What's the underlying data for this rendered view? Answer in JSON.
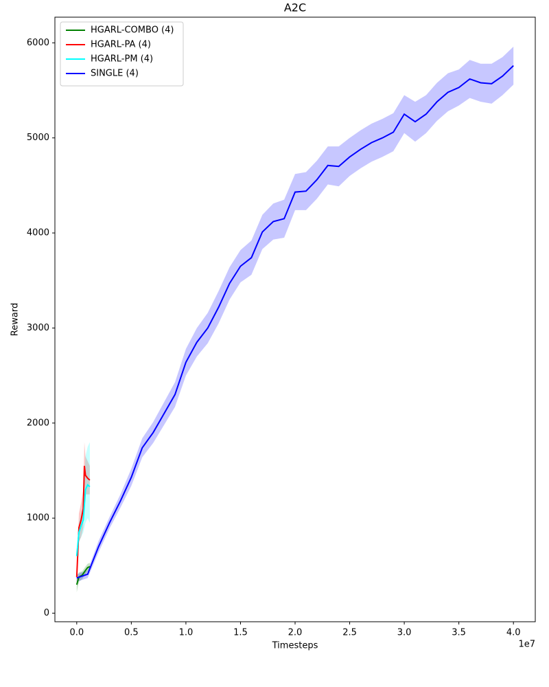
{
  "chart_data": {
    "type": "line",
    "title": "A2C",
    "x_label": "Timesteps",
    "y_label": "Reward",
    "x_offset_label": "1e7",
    "xlim": [
      -0.2,
      4.2
    ],
    "ylim": [
      -90,
      6270
    ],
    "xticks": [
      {
        "value": 0,
        "label": "0.0"
      },
      0.5,
      {
        "value": 1,
        "label": "1.0"
      },
      1.5,
      {
        "value": 2,
        "label": "2.0"
      },
      2.5,
      {
        "value": 3,
        "label": "3.0"
      },
      3.5,
      {
        "value": 4,
        "label": "4.0"
      }
    ],
    "yticks": [
      0,
      1000,
      2000,
      3000,
      4000,
      5000,
      6000
    ],
    "grid": false,
    "legend": "upper left",
    "series": [
      {
        "name": "HGARL-COMBO (4)",
        "color": "#008000",
        "x": [
          0,
          0.02,
          0.05,
          0.08,
          0.1,
          0.12
        ],
        "values": [
          300,
          380,
          400,
          450,
          480,
          490
        ],
        "lower": [
          220,
          330,
          360,
          410,
          440,
          450
        ],
        "upper": [
          380,
          430,
          440,
          490,
          520,
          530
        ]
      },
      {
        "name": "HGARL-PA (4)",
        "color": "#ff0000",
        "x": [
          0,
          0.02,
          0.04,
          0.06,
          0.07,
          0.08,
          0.1,
          0.12
        ],
        "values": [
          380,
          900,
          980,
          1100,
          1550,
          1450,
          1420,
          1400
        ],
        "lower": [
          300,
          750,
          800,
          900,
          1350,
          1250,
          1250,
          1250
        ],
        "upper": [
          460,
          1050,
          1160,
          1300,
          1800,
          1650,
          1600,
          1550
        ]
      },
      {
        "name": "HGARL-PM (4)",
        "color": "#00ffff",
        "x": [
          0,
          0.02,
          0.04,
          0.06,
          0.08,
          0.1,
          0.12
        ],
        "values": [
          600,
          850,
          920,
          980,
          1300,
          1350,
          1330
        ],
        "lower": [
          550,
          750,
          800,
          850,
          950,
          1000,
          950
        ],
        "upper": [
          650,
          950,
          1050,
          1150,
          1650,
          1750,
          1800
        ]
      },
      {
        "name": "SINGLE (4)",
        "color": "#0000ff",
        "x": [
          0,
          0.1,
          0.2,
          0.3,
          0.4,
          0.5,
          0.6,
          0.7,
          0.8,
          0.9,
          1.0,
          1.1,
          1.2,
          1.3,
          1.4,
          1.5,
          1.6,
          1.7,
          1.8,
          1.9,
          2.0,
          2.1,
          2.2,
          2.3,
          2.4,
          2.5,
          2.6,
          2.7,
          2.8,
          2.9,
          3.0,
          3.1,
          3.2,
          3.3,
          3.4,
          3.5,
          3.6,
          3.7,
          3.8,
          3.9,
          4.0
        ],
        "values": [
          370,
          410,
          700,
          950,
          1180,
          1430,
          1740,
          1900,
          2100,
          2300,
          2640,
          2850,
          3000,
          3220,
          3470,
          3650,
          3740,
          4010,
          4120,
          4150,
          4430,
          4440,
          4560,
          4710,
          4700,
          4800,
          4880,
          4950,
          5000,
          5060,
          5250,
          5170,
          5250,
          5380,
          5480,
          5530,
          5620,
          5580,
          5570,
          5650,
          5760
        ],
        "lower": [
          330,
          370,
          640,
          890,
          1110,
          1340,
          1640,
          1790,
          1980,
          2170,
          2500,
          2700,
          2840,
          3050,
          3300,
          3480,
          3560,
          3830,
          3930,
          3950,
          4240,
          4240,
          4360,
          4510,
          4490,
          4600,
          4680,
          4750,
          4800,
          4860,
          5050,
          4960,
          5050,
          5180,
          5280,
          5340,
          5420,
          5380,
          5360,
          5450,
          5560
        ],
        "upper": [
          410,
          450,
          760,
          1010,
          1250,
          1520,
          1840,
          2010,
          2220,
          2430,
          2780,
          3000,
          3160,
          3390,
          3640,
          3820,
          3920,
          4190,
          4310,
          4350,
          4620,
          4640,
          4760,
          4910,
          4910,
          5000,
          5080,
          5150,
          5200,
          5260,
          5450,
          5380,
          5450,
          5580,
          5680,
          5720,
          5820,
          5780,
          5780,
          5850,
          5960
        ]
      }
    ]
  }
}
